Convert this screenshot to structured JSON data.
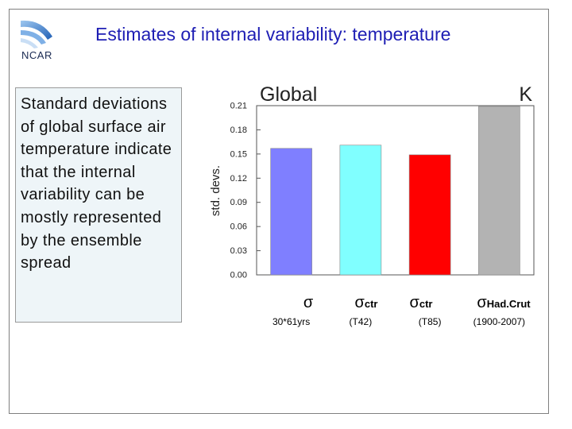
{
  "slide": {
    "title": "Estimates of internal variability: temperature",
    "logo_text": "NCAR",
    "description": "Standard deviations of global surface air temperature indicate that the internal variability can be mostly represented by the ensemble spread"
  },
  "chart_data": {
    "type": "bar",
    "title": "Global",
    "unit_label": "K",
    "ylabel": "std. devs.",
    "xlabel": "",
    "ylim": [
      0,
      0.21
    ],
    "yticks": [
      "0.00",
      "0.03",
      "0.06",
      "0.09",
      "0.12",
      "0.15",
      "0.18",
      "0.21"
    ],
    "grid": false,
    "categories": [
      {
        "symbol": "σ",
        "subscript": "",
        "sublabel": "30*61yrs",
        "value": 0.157,
        "color": "#7f7fff"
      },
      {
        "symbol": "σ",
        "subscript": "ctr",
        "sublabel": "(T42)",
        "value": 0.161,
        "color": "#80ffff"
      },
      {
        "symbol": "σ",
        "subscript": "ctr",
        "sublabel": "(T85)",
        "value": 0.149,
        "color": "#ff0000"
      },
      {
        "symbol": "σ",
        "subscript": "Had.Crut",
        "sublabel": "(1900-2007)",
        "value": 0.209,
        "color": "#b3b3b3"
      }
    ]
  }
}
